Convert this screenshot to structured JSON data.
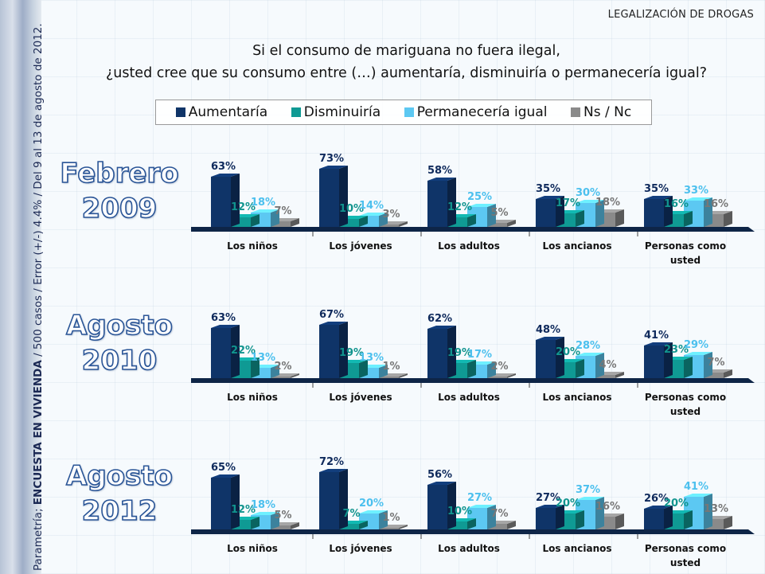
{
  "header": {
    "topic": "LEGALIZACIÓN DE DROGAS",
    "question_line1": "Si el consumo de mariguana no fuera ilegal,",
    "question_line2": "¿usted cree que su consumo entre  (…) aumentaría, disminuiría o permanecería igual?"
  },
  "source": {
    "prefix": "Parametría; ",
    "bold": "ENCUESTA EN VIVIENDA",
    "suffix": " / 500 casos / Error (+/-) 4.4% / Del 9 al 13 de agosto de 2012."
  },
  "colors": {
    "aumentaria": "#0f3468",
    "disminuiria": "#0f9a94",
    "permaneceria": "#5cc8f2",
    "nsnc": "#8a8a8a",
    "baseline": "#0e2547"
  },
  "chart_data": [
    {
      "type": "bar",
      "title": "Febrero 2009",
      "title_line1": "Febrero",
      "title_line2": "2009",
      "categories": [
        "Los niños",
        "Los jóvenes",
        "Los adultos",
        "Los ancianos",
        "Personas como usted"
      ],
      "ylim": [
        0,
        100
      ],
      "series": [
        {
          "name": "Aumentaría",
          "values": [
            63,
            73,
            58,
            35,
            35
          ]
        },
        {
          "name": "Disminuiría",
          "values": [
            12,
            10,
            12,
            17,
            16
          ]
        },
        {
          "name": "Permanecería igual",
          "values": [
            18,
            14,
            25,
            30,
            33
          ]
        },
        {
          "name": "Ns / Nc",
          "values": [
            7,
            3,
            5,
            18,
            16
          ]
        }
      ]
    },
    {
      "type": "bar",
      "title": "Agosto 2010",
      "title_line1": "Agosto",
      "title_line2": "2010",
      "categories": [
        "Los niños",
        "Los jóvenes",
        "Los adultos",
        "Los ancianos",
        "Personas como usted"
      ],
      "ylim": [
        0,
        100
      ],
      "series": [
        {
          "name": "Aumentaría",
          "values": [
            63,
            67,
            62,
            48,
            41
          ]
        },
        {
          "name": "Disminuiría",
          "values": [
            22,
            19,
            19,
            20,
            23
          ]
        },
        {
          "name": "Permanecería igual",
          "values": [
            13,
            13,
            17,
            28,
            29
          ]
        },
        {
          "name": "Ns / Nc",
          "values": [
            2,
            1,
            2,
            4,
            7
          ]
        }
      ]
    },
    {
      "type": "bar",
      "title": "Agosto 2012",
      "title_line1": "Agosto",
      "title_line2": "2012",
      "categories": [
        "Los niños",
        "Los jóvenes",
        "Los adultos",
        "Los ancianos",
        "Personas como usted"
      ],
      "ylim": [
        0,
        100
      ],
      "series": [
        {
          "name": "Aumentaría",
          "values": [
            65,
            72,
            56,
            27,
            26
          ]
        },
        {
          "name": "Disminuiría",
          "values": [
            12,
            7,
            10,
            20,
            20
          ]
        },
        {
          "name": "Permanecería igual",
          "values": [
            18,
            20,
            27,
            37,
            41
          ]
        },
        {
          "name": "Ns / Nc",
          "values": [
            5,
            1,
            7,
            16,
            13
          ]
        }
      ]
    }
  ],
  "legend": {
    "items": [
      {
        "label": "Aumentaría",
        "color": "#0f3468"
      },
      {
        "label": "Disminuiría",
        "color": "#0f9a94"
      },
      {
        "label": "Permanecería igual",
        "color": "#5cc8f2"
      },
      {
        "label": "Ns / Nc",
        "color": "#8a8a8a"
      }
    ]
  }
}
